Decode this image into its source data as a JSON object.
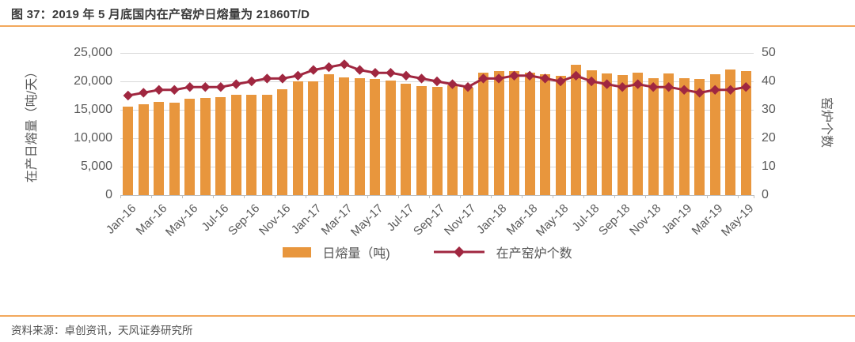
{
  "header": {
    "title": "图 37：2019 年 5 月底国内在产窑炉日熔量为 21860T/D"
  },
  "footer": {
    "source": "资料来源：卓创资讯，天风证券研究所"
  },
  "legend": {
    "bars": "日熔量（吨)",
    "line": "在产窑炉个数"
  },
  "colors": {
    "bar": "#E8963D",
    "line": "#A02740",
    "grid": "#D9D9D9",
    "axis": "#BFBFBF",
    "accent_rule": "#F2A85C",
    "tick_text": "#595959",
    "title_text": "#3A3A3A"
  },
  "chart_data": {
    "type": "bar",
    "subtype": "bar+line combo, dual axis",
    "title": "图 37：2019 年 5 月底国内在产窑炉日熔量为 21860T/D",
    "grid": true,
    "legend_position": "bottom",
    "categories": [
      "Jan-16",
      "Feb-16",
      "Mar-16",
      "Apr-16",
      "May-16",
      "Jun-16",
      "Jul-16",
      "Aug-16",
      "Sep-16",
      "Oct-16",
      "Nov-16",
      "Dec-16",
      "Jan-17",
      "Feb-17",
      "Mar-17",
      "Apr-17",
      "May-17",
      "Jun-17",
      "Jul-17",
      "Aug-17",
      "Sep-17",
      "Oct-17",
      "Nov-17",
      "Dec-17",
      "Jan-18",
      "Feb-18",
      "Mar-18",
      "Apr-18",
      "May-18",
      "Jun-18",
      "Jul-18",
      "Aug-18",
      "Sep-18",
      "Oct-18",
      "Nov-18",
      "Dec-18",
      "Jan-19",
      "Feb-19",
      "Mar-19",
      "Apr-19",
      "May-19"
    ],
    "x_labels_shown_every": 2,
    "series": [
      {
        "name": "日熔量（吨)",
        "type": "bar",
        "axis": "left",
        "values": [
          15500,
          16000,
          16450,
          16250,
          16900,
          17100,
          17250,
          17700,
          17700,
          17650,
          18550,
          20050,
          19950,
          21200,
          20700,
          20500,
          20400,
          20100,
          19550,
          19200,
          19050,
          19300,
          18900,
          21500,
          21800,
          21800,
          21550,
          21300,
          21000,
          22900,
          21900,
          21400,
          21050,
          21550,
          20600,
          21400,
          20600,
          20400,
          21300,
          22100,
          21860
        ]
      },
      {
        "name": "在产窑炉个数",
        "type": "line",
        "marker": "diamond",
        "axis": "right",
        "values": [
          35,
          36,
          37,
          37,
          38,
          38,
          38,
          39,
          40,
          41,
          41,
          42,
          44,
          45,
          46,
          44,
          43,
          43,
          42,
          41,
          40,
          39,
          38,
          41,
          41,
          42,
          42,
          41,
          40,
          42,
          40,
          39,
          38,
          39,
          38,
          38,
          37,
          36,
          37,
          37,
          38
        ]
      }
    ],
    "left_axis": {
      "title": "在产日熔量（吨/天）",
      "min": 0,
      "max": 25000,
      "step": 5000
    },
    "right_axis": {
      "title": "窑炉个数",
      "min": 0,
      "max": 50,
      "step": 10
    }
  }
}
